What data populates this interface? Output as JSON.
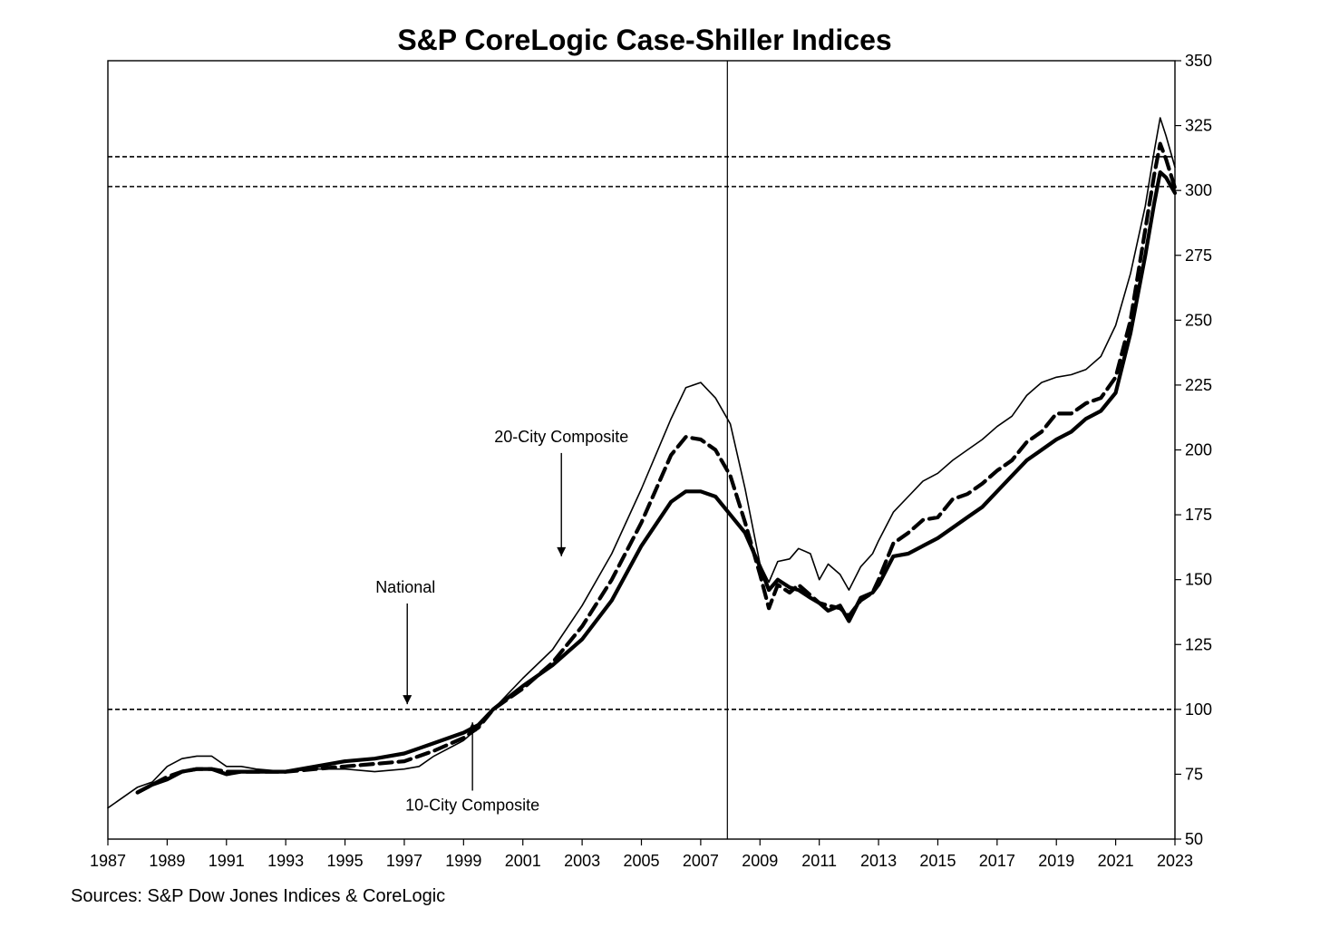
{
  "chart_data": {
    "type": "line",
    "title": "S&P CoreLogic Case-Shiller Indices",
    "source": "Sources: S&P Dow Jones Indices & CoreLogic",
    "xlabel": "",
    "ylabel": "",
    "xlim": [
      1987,
      2023
    ],
    "ylim": [
      50,
      350
    ],
    "x_ticks": [
      "1987",
      "1989",
      "1991",
      "1993",
      "1995",
      "1997",
      "1999",
      "2001",
      "2003",
      "2005",
      "2007",
      "2009",
      "2011",
      "2013",
      "2015",
      "2017",
      "2019",
      "2021",
      "2023"
    ],
    "y_ticks": [
      "50",
      "75",
      "100",
      "125",
      "150",
      "175",
      "200",
      "225",
      "250",
      "275",
      "300",
      "325",
      "350"
    ],
    "y_axis_side": "right",
    "grid": false,
    "legend": "none",
    "reference_lines": [
      {
        "axis": "y",
        "value": 100,
        "style": "dashed"
      },
      {
        "axis": "y",
        "value": 301.5,
        "style": "dashed"
      },
      {
        "axis": "y",
        "value": 313,
        "style": "dashed"
      },
      {
        "axis": "x",
        "value": 2007.9,
        "style": "solid"
      }
    ],
    "annotations": [
      {
        "text": "20-City Composite",
        "x": 2002.3,
        "y": 203,
        "arrow_to_y": 159
      },
      {
        "text": "National",
        "x": 1997.1,
        "y": 145,
        "arrow_to_y": 102
      },
      {
        "text": "10-City Composite",
        "x": 1999.3,
        "y": 61,
        "arrow_to_y": 95
      }
    ],
    "series": [
      {
        "name": "10-City Composite",
        "style": "thin",
        "x": [
          1987.0,
          1987.5,
          1988.0,
          1988.5,
          1989.0,
          1989.5,
          1990.0,
          1990.5,
          1991.0,
          1991.5,
          1992.0,
          1993.0,
          1994.0,
          1995.0,
          1996.0,
          1997.0,
          1997.5,
          1998.0,
          1999.0,
          1999.5,
          2000.0,
          2001.0,
          2002.0,
          2003.0,
          2004.0,
          2005.0,
          2006.0,
          2006.5,
          2007.0,
          2007.5,
          2008.0,
          2008.5,
          2009.0,
          2009.3,
          2009.6,
          2010.0,
          2010.3,
          2010.7,
          2011.0,
          2011.3,
          2011.7,
          2012.0,
          2012.4,
          2012.8,
          2013.0,
          2013.5,
          2014.0,
          2014.5,
          2015.0,
          2015.5,
          2016.0,
          2016.5,
          2017.0,
          2017.5,
          2018.0,
          2018.5,
          2019.0,
          2019.5,
          2020.0,
          2020.5,
          2021.0,
          2021.5,
          2022.0,
          2022.3,
          2022.5,
          2022.7,
          2023.0
        ],
        "values": [
          62,
          66,
          70,
          72,
          78,
          81,
          82,
          82,
          78,
          78,
          77,
          76,
          77,
          77,
          76,
          77,
          78,
          82,
          88,
          93,
          100,
          112,
          123,
          140,
          160,
          185,
          212,
          224,
          226,
          220,
          210,
          185,
          156,
          149,
          157,
          158,
          162,
          160,
          150,
          156,
          152,
          146,
          155,
          160,
          165,
          176,
          182,
          188,
          191,
          196,
          200,
          204,
          209,
          213,
          221,
          226,
          228,
          229,
          231,
          236,
          248,
          268,
          294,
          315,
          328,
          321,
          309
        ]
      },
      {
        "name": "20-City Composite",
        "style": "dashed",
        "x": [
          1988.0,
          1988.5,
          1989.0,
          1989.5,
          1990.0,
          1990.5,
          1991.0,
          1991.5,
          1992.0,
          1993.0,
          1994.0,
          1995.0,
          1996.0,
          1997.0,
          1997.5,
          1998.0,
          1999.0,
          1999.5,
          2000.0,
          2001.0,
          2002.0,
          2003.0,
          2004.0,
          2005.0,
          2006.0,
          2006.5,
          2007.0,
          2007.5,
          2008.0,
          2008.5,
          2009.0,
          2009.3,
          2009.6,
          2010.0,
          2010.3,
          2010.7,
          2011.0,
          2011.3,
          2011.7,
          2012.0,
          2012.4,
          2012.8,
          2013.0,
          2013.5,
          2014.0,
          2014.5,
          2015.0,
          2015.5,
          2016.0,
          2016.5,
          2017.0,
          2017.5,
          2018.0,
          2018.5,
          2019.0,
          2019.5,
          2020.0,
          2020.5,
          2021.0,
          2021.5,
          2022.0,
          2022.3,
          2022.5,
          2022.7,
          2023.0
        ],
        "values": [
          68,
          71,
          74,
          76,
          77,
          77,
          76,
          76,
          76,
          76,
          77,
          78,
          79,
          80,
          82,
          84,
          89,
          93,
          100,
          108,
          118,
          132,
          150,
          172,
          198,
          205,
          204,
          200,
          190,
          172,
          152,
          139,
          148,
          145,
          148,
          144,
          141,
          140,
          139,
          136,
          142,
          145,
          150,
          164,
          168,
          173,
          174,
          181,
          183,
          187,
          192,
          196,
          203,
          207,
          214,
          214,
          218,
          220,
          228,
          250,
          285,
          306,
          318,
          312,
          301
        ]
      },
      {
        "name": "National",
        "style": "thick",
        "x": [
          1988.0,
          1988.5,
          1989.0,
          1989.5,
          1990.0,
          1990.5,
          1991.0,
          1991.5,
          1992.0,
          1993.0,
          1994.0,
          1995.0,
          1996.0,
          1997.0,
          1997.5,
          1998.0,
          1999.0,
          1999.5,
          2000.0,
          2001.0,
          2002.0,
          2003.0,
          2004.0,
          2005.0,
          2006.0,
          2006.5,
          2007.0,
          2007.5,
          2008.0,
          2008.5,
          2009.0,
          2009.3,
          2009.6,
          2010.0,
          2010.3,
          2010.7,
          2011.0,
          2011.3,
          2011.7,
          2012.0,
          2012.4,
          2012.8,
          2013.0,
          2013.5,
          2014.0,
          2014.5,
          2015.0,
          2015.5,
          2016.0,
          2016.5,
          2017.0,
          2017.5,
          2018.0,
          2018.5,
          2019.0,
          2019.5,
          2020.0,
          2020.5,
          2021.0,
          2021.5,
          2022.0,
          2022.3,
          2022.5,
          2022.7,
          2023.0
        ],
        "values": [
          68,
          71,
          73,
          76,
          77,
          77,
          75,
          76,
          76,
          76,
          78,
          80,
          81,
          83,
          85,
          87,
          91,
          94,
          100,
          109,
          117,
          127,
          142,
          163,
          180,
          184,
          184,
          182,
          175,
          168,
          155,
          146,
          150,
          147,
          146,
          143,
          141,
          138,
          140,
          134,
          143,
          145,
          148,
          159,
          160,
          163,
          166,
          170,
          174,
          178,
          184,
          190,
          196,
          200,
          204,
          207,
          212,
          215,
          222,
          245,
          275,
          295,
          307,
          305,
          299
        ]
      }
    ]
  }
}
